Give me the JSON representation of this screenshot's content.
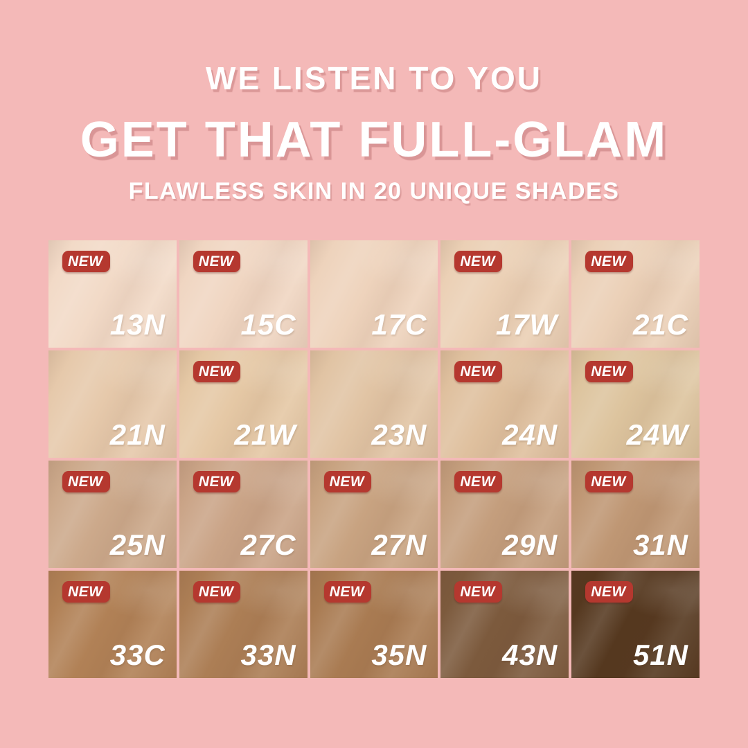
{
  "header": {
    "line1": "WE LISTEN TO YOU",
    "line2": "GET THAT FULL-GLAM",
    "line3": "FLAWLESS SKIN IN 20 UNIQUE SHADES"
  },
  "badge_label": "NEW",
  "colors": {
    "background_pink": "#f4b9b8",
    "badge_red": "#b5382f",
    "headline_white": "#ffffff",
    "shadow_pink": "#c67d7e"
  },
  "shade_count": 20,
  "shades": [
    {
      "code": "13N",
      "new": true,
      "color": "#f2dac7"
    },
    {
      "code": "15C",
      "new": true,
      "color": "#f0d6c2"
    },
    {
      "code": "17C",
      "new": false,
      "color": "#eed3bc"
    },
    {
      "code": "17W",
      "new": true,
      "color": "#ebd0b5"
    },
    {
      "code": "21C",
      "new": true,
      "color": "#ebd0b7"
    },
    {
      "code": "21N",
      "new": false,
      "color": "#e6c9ab"
    },
    {
      "code": "21W",
      "new": true,
      "color": "#e5c8a5"
    },
    {
      "code": "23N",
      "new": false,
      "color": "#e1c4a4"
    },
    {
      "code": "24N",
      "new": true,
      "color": "#dfc09e"
    },
    {
      "code": "24W",
      "new": true,
      "color": "#ddc49e"
    },
    {
      "code": "25N",
      "new": true,
      "color": "#cca98b"
    },
    {
      "code": "27C",
      "new": true,
      "color": "#caa487"
    },
    {
      "code": "27N",
      "new": true,
      "color": "#c8a381"
    },
    {
      "code": "29N",
      "new": true,
      "color": "#c49e7d"
    },
    {
      "code": "31N",
      "new": true,
      "color": "#bf9774"
    },
    {
      "code": "33C",
      "new": true,
      "color": "#b18156"
    },
    {
      "code": "33N",
      "new": true,
      "color": "#ac7e55"
    },
    {
      "code": "35N",
      "new": true,
      "color": "#a97b52"
    },
    {
      "code": "43N",
      "new": true,
      "color": "#7c5a3d"
    },
    {
      "code": "51N",
      "new": true,
      "color": "#55381f"
    }
  ]
}
